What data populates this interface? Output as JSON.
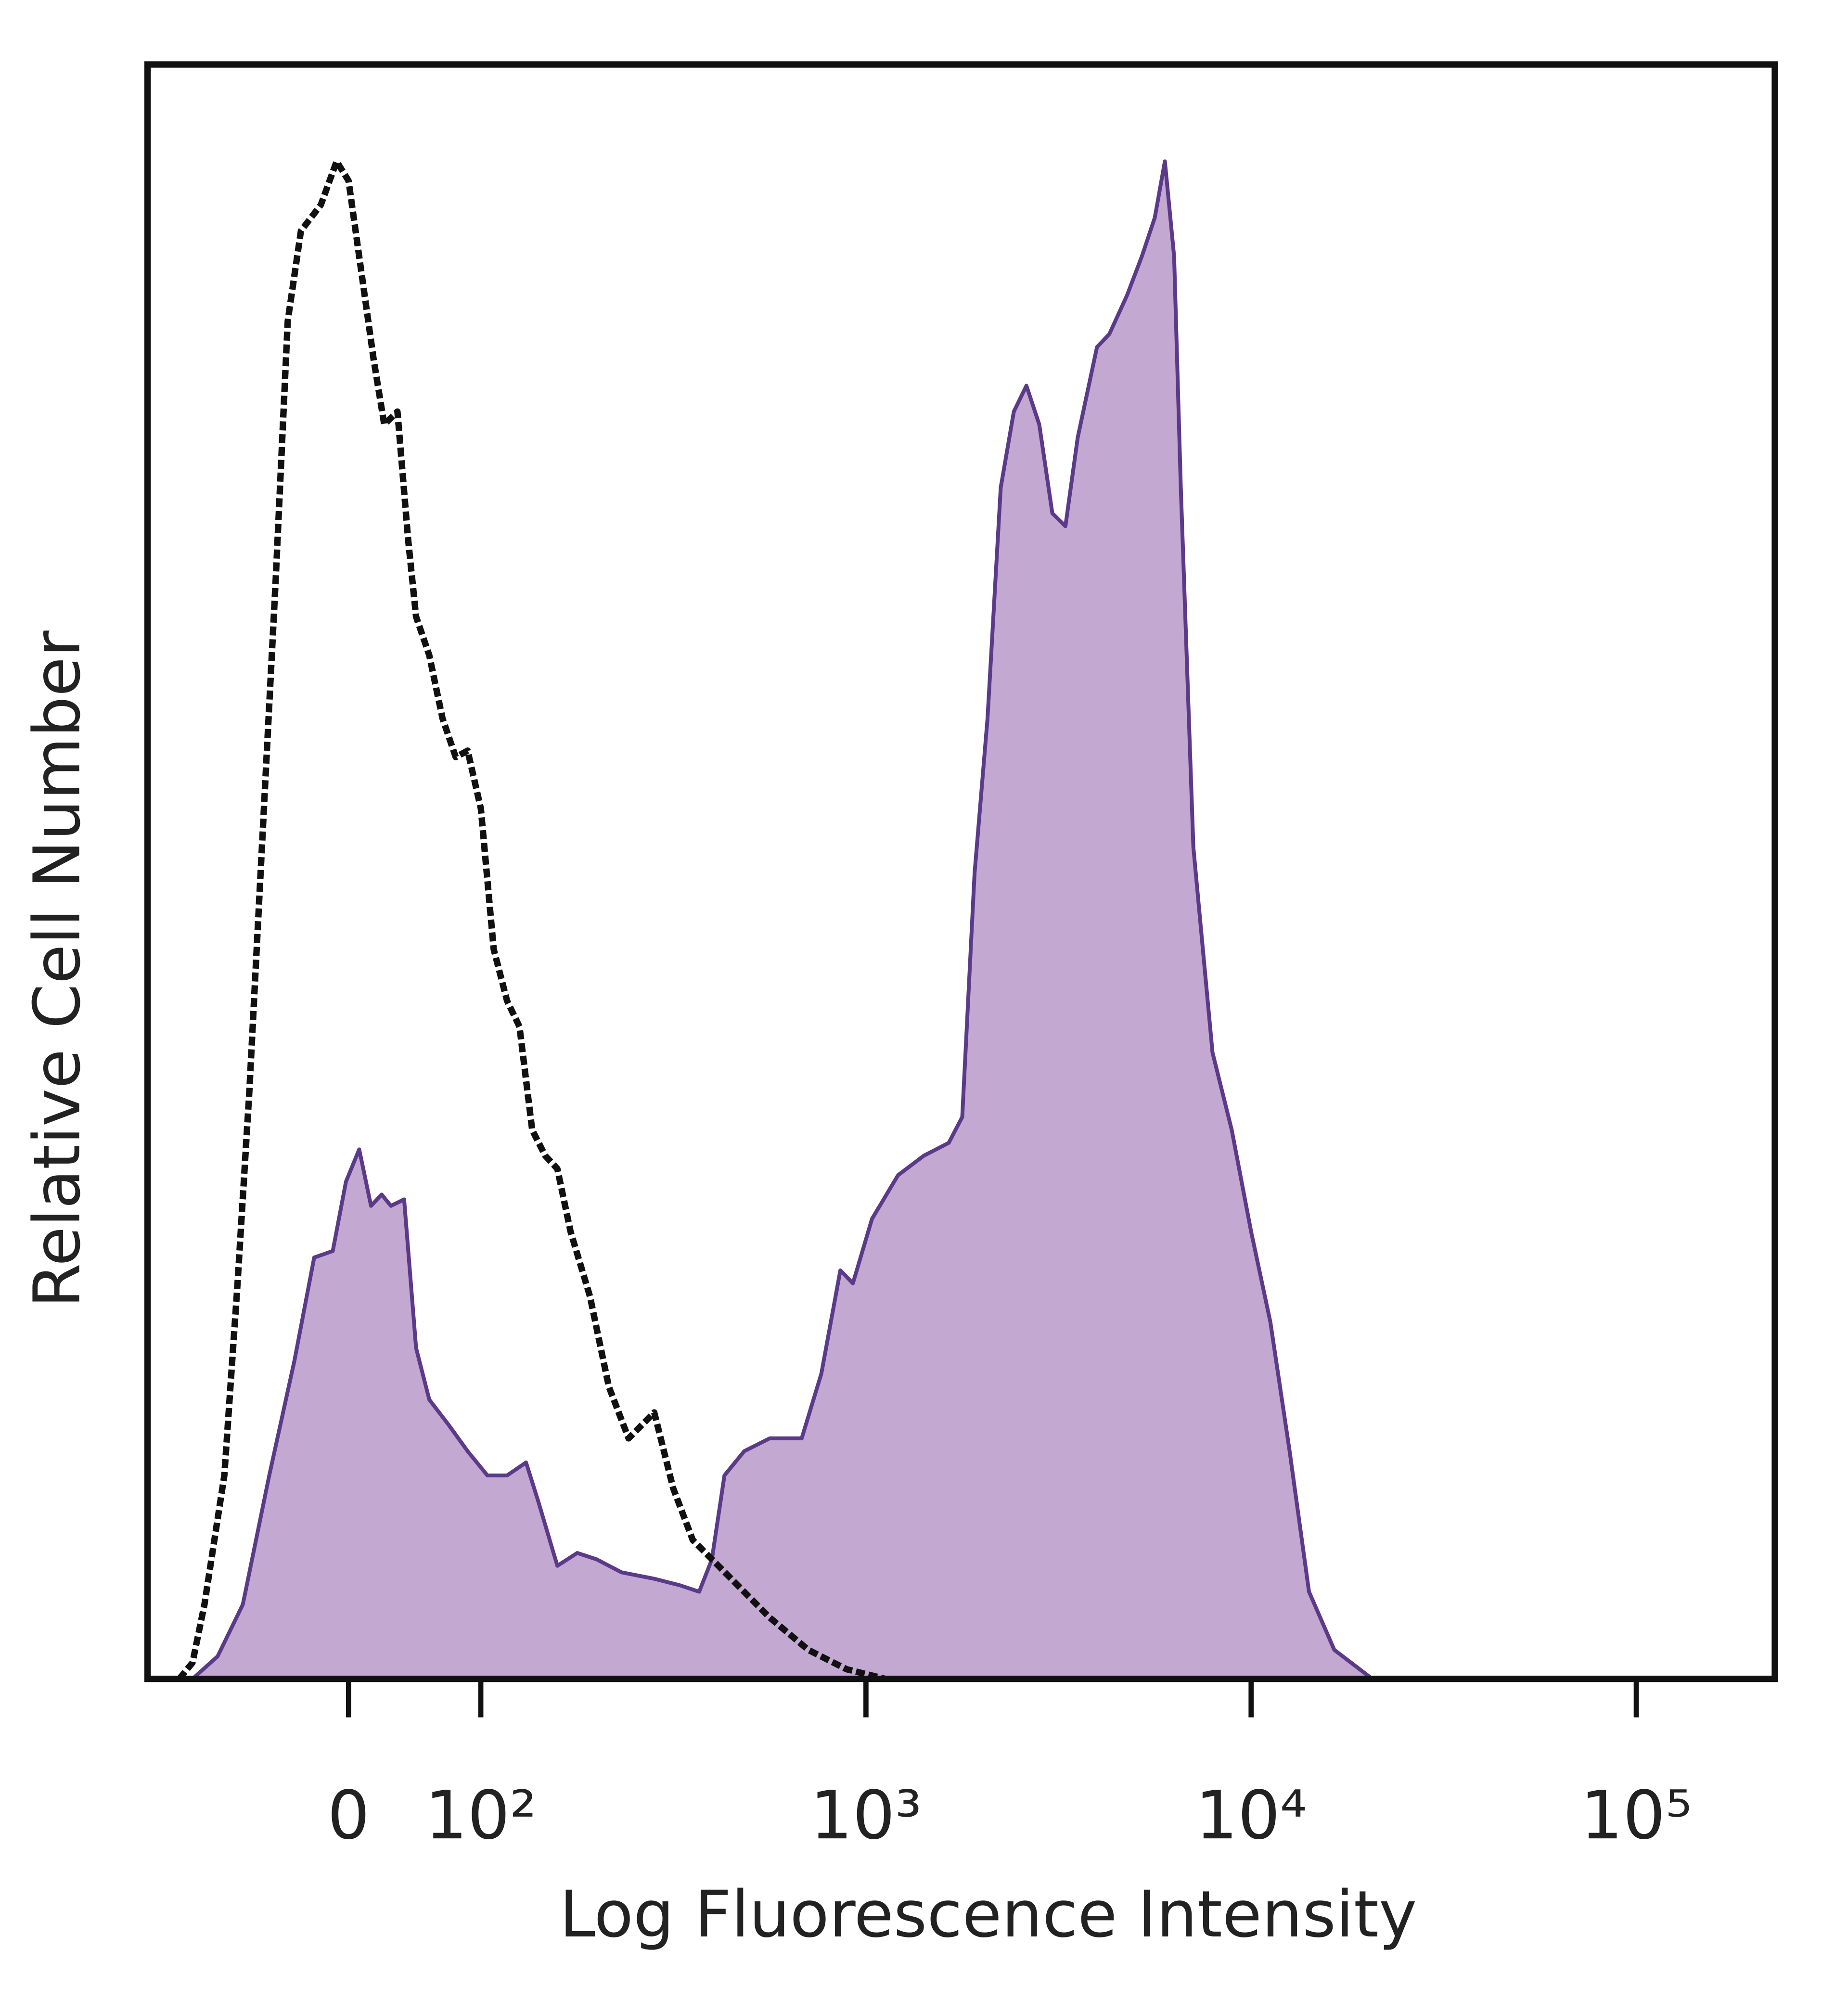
{
  "chart_data": {
    "type": "area",
    "xlabel": "Log Fluorescence Intensity",
    "ylabel": "Relative Cell Number",
    "xscale": "biexponential",
    "xlim": [
      -152,
      229000
    ],
    "ylim": [
      0,
      100
    ],
    "xticks": [
      0,
      {
        "value": 100,
        "label": "10²"
      },
      {
        "value": 1000,
        "label": "10³"
      },
      {
        "value": 10000,
        "label": "10⁴"
      },
      {
        "value": 100000,
        "label": "10⁵"
      }
    ],
    "series": [
      {
        "color": "#5b3a8a",
        "fill": "#c3a8d1",
        "style": "solid",
        "x": [
          -118,
          -99,
          -80,
          -60,
          -41,
          -26,
          -12,
          -2,
          8,
          17,
          25,
          32,
          42,
          51,
          61,
          76,
          90,
          104,
          117,
          131,
          141,
          158,
          178,
          200,
          232,
          282,
          328,
          369,
          398,
          429,
          483,
          562,
          681,
          766,
          858,
          925,
          1037,
          1212,
          1413,
          1641,
          1778,
          1914,
          2069,
          2239,
          2421,
          2610,
          2818,
          3048,
          3296,
          3548,
          3981,
          4284,
          4764,
          5200,
          5621,
          5970,
          6310,
          6570,
          7080,
          7940,
          8910,
          10000,
          11220,
          12590,
          14130,
          16440,
          20640,
          220000
        ],
        "values": [
          0,
          1.4,
          4.6,
          12.6,
          19.7,
          26.1,
          26.5,
          30.8,
          32.8,
          29.3,
          30.0,
          29.3,
          29.7,
          20.5,
          17.3,
          15.7,
          14.1,
          12.6,
          12.6,
          13.4,
          11.0,
          7.0,
          7.8,
          7.4,
          6.6,
          6.2,
          5.8,
          5.4,
          7.4,
          12.6,
          14.1,
          14.9,
          14.9,
          18.9,
          25.3,
          24.5,
          28.5,
          31.2,
          32.4,
          33.2,
          34.8,
          49.9,
          59.5,
          73.8,
          78.5,
          80.1,
          77.7,
          72.2,
          71.4,
          76.9,
          82.5,
          83.3,
          85.7,
          88.1,
          90.5,
          94.0,
          88.1,
          73.8,
          51.5,
          38.8,
          34.0,
          27.7,
          22.1,
          14.1,
          5.4,
          1.8,
          0,
          0
        ]
      },
      {
        "color": "#111111",
        "fill": "none",
        "style": "dashed",
        "x": [
          -128,
          -118,
          -109,
          -94,
          -84,
          -75,
          -65,
          -55,
          -46,
          -36,
          -21,
          -9,
          0,
          8,
          19,
          27,
          37,
          45,
          51,
          61,
          71,
          81,
          90,
          100,
          108,
          117,
          126,
          136,
          147,
          158,
          171,
          192,
          215,
          242,
          282,
          316,
          355,
          447,
          562,
          708,
          891,
          1122
        ],
        "values": [
          0,
          1.0,
          4.6,
          12.6,
          24.5,
          36.4,
          52.3,
          68.2,
          84.1,
          89.7,
          91.3,
          94.0,
          92.8,
          88.1,
          81.7,
          77.7,
          78.5,
          70.6,
          65.8,
          63.4,
          59.5,
          57.1,
          57.5,
          53.9,
          45.2,
          42.0,
          40.4,
          34.0,
          32.4,
          31.6,
          27.7,
          23.7,
          18.1,
          14.9,
          16.5,
          11.8,
          8.6,
          6.2,
          3.8,
          1.8,
          0.6,
          0
        ]
      }
    ]
  }
}
